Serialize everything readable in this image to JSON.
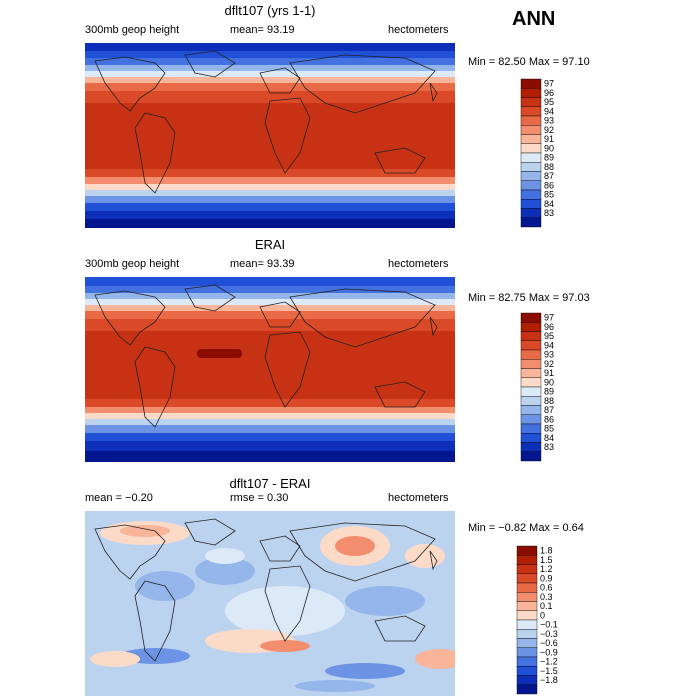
{
  "figure_label": "ANN",
  "panels": [
    {
      "title": "dflt107 (yrs 1-1)",
      "left_text": "300mb geop height",
      "center_text": "mean=  93.19",
      "right_text": "hectometers",
      "minmax": "Min =  82.50 Max =  97.10",
      "colorbar_labels": [
        "97",
        "96",
        "95",
        "94",
        "93",
        "92",
        "91",
        "90",
        "89",
        "88",
        "87",
        "86",
        "85",
        "84",
        "83"
      ],
      "colors": [
        "#8b0d00",
        "#b11e00",
        "#c83214",
        "#db4a28",
        "#e96a47",
        "#f28d6d",
        "#f8b59a",
        "#fcdac8",
        "#dce9f6",
        "#bcd3f0",
        "#95b6ea",
        "#6d94e4",
        "#4471e0",
        "#2050d6",
        "#0c2eb9",
        "#04168f"
      ]
    },
    {
      "title": "ERAI",
      "left_text": "300mb geop height",
      "center_text": "mean=  93.39",
      "right_text": "hectometers",
      "minmax": "Min =  82.75 Max =  97.03",
      "colorbar_labels": [
        "97",
        "96",
        "95",
        "94",
        "93",
        "92",
        "91",
        "90",
        "89",
        "88",
        "87",
        "86",
        "85",
        "84",
        "83"
      ],
      "colors": [
        "#8b0d00",
        "#b11e00",
        "#c83214",
        "#db4a28",
        "#e96a47",
        "#f28d6d",
        "#f8b59a",
        "#fcdac8",
        "#dce9f6",
        "#bcd3f0",
        "#95b6ea",
        "#6d94e4",
        "#4471e0",
        "#2050d6",
        "#0c2eb9",
        "#04168f"
      ]
    },
    {
      "title": "dflt107 - ERAI",
      "left_text": "mean =  −0.20",
      "center_text": "rmse =   0.30",
      "right_text": "hectometers",
      "minmax": "Min =  −0.82 Max =   0.64",
      "colorbar_labels": [
        "1.8",
        "1.5",
        "1.2",
        "0.9",
        "0.6",
        "0.3",
        "0.1",
        "0",
        "−0.1",
        "−0.3",
        "−0.6",
        "−0.9",
        "−1.2",
        "−1.5",
        "−1.8"
      ],
      "colors": [
        "#8b0d00",
        "#b11e00",
        "#c83214",
        "#db4a28",
        "#e96a47",
        "#f28d6d",
        "#f8b59a",
        "#fcdac8",
        "#dce9f6",
        "#bcd3f0",
        "#95b6ea",
        "#6d94e4",
        "#4471e0",
        "#2050d6",
        "#0c2eb9",
        "#04168f"
      ]
    }
  ]
}
